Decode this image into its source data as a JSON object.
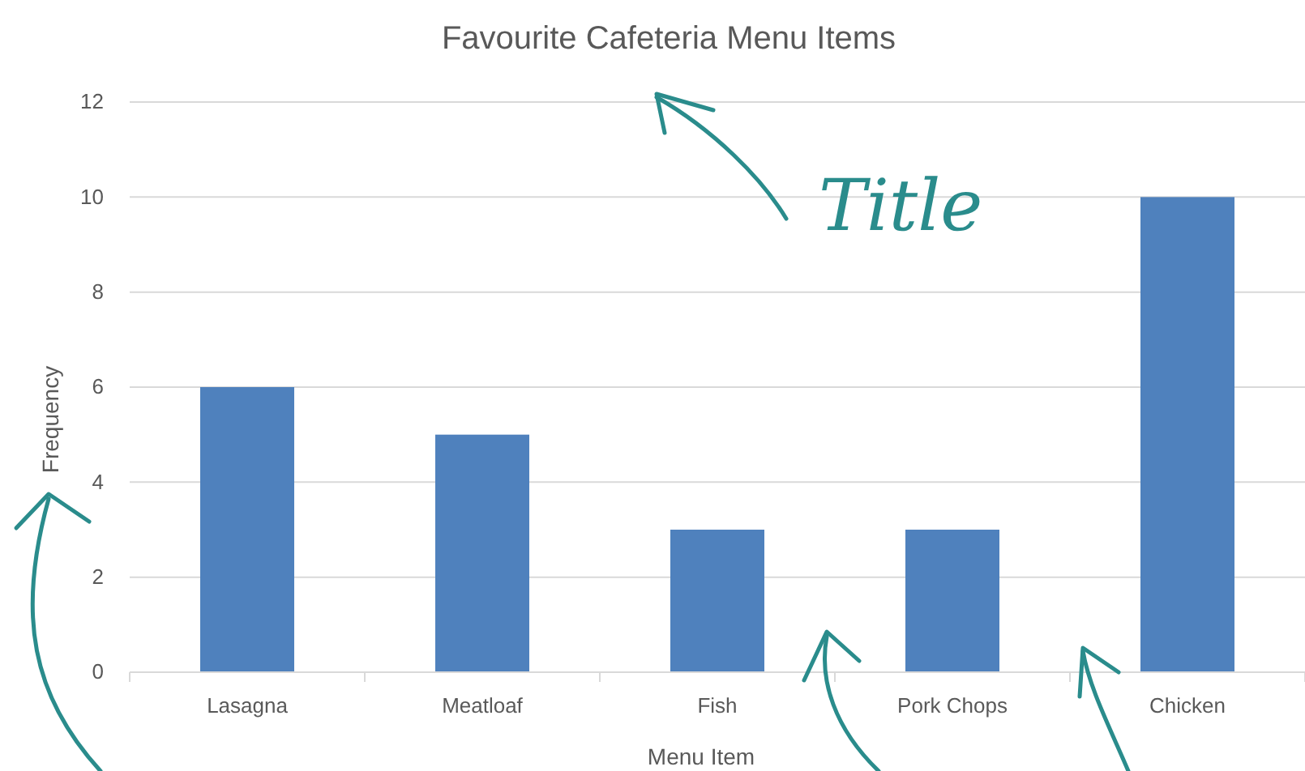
{
  "chart_data": {
    "type": "bar",
    "title": "Favourite Cafeteria Menu Items",
    "xlabel": "Menu Item",
    "ylabel": "Frequency",
    "categories": [
      "Lasagna",
      "Meatloaf",
      "Fish",
      "Pork Chops",
      "Chicken"
    ],
    "values": [
      6,
      5,
      3,
      3,
      10
    ],
    "color": "#4f81bd",
    "ylim": [
      0,
      12
    ],
    "yticks": [
      0,
      2,
      4,
      6,
      8,
      10,
      12
    ],
    "grid": "y",
    "annotations": [
      "Title"
    ]
  }
}
